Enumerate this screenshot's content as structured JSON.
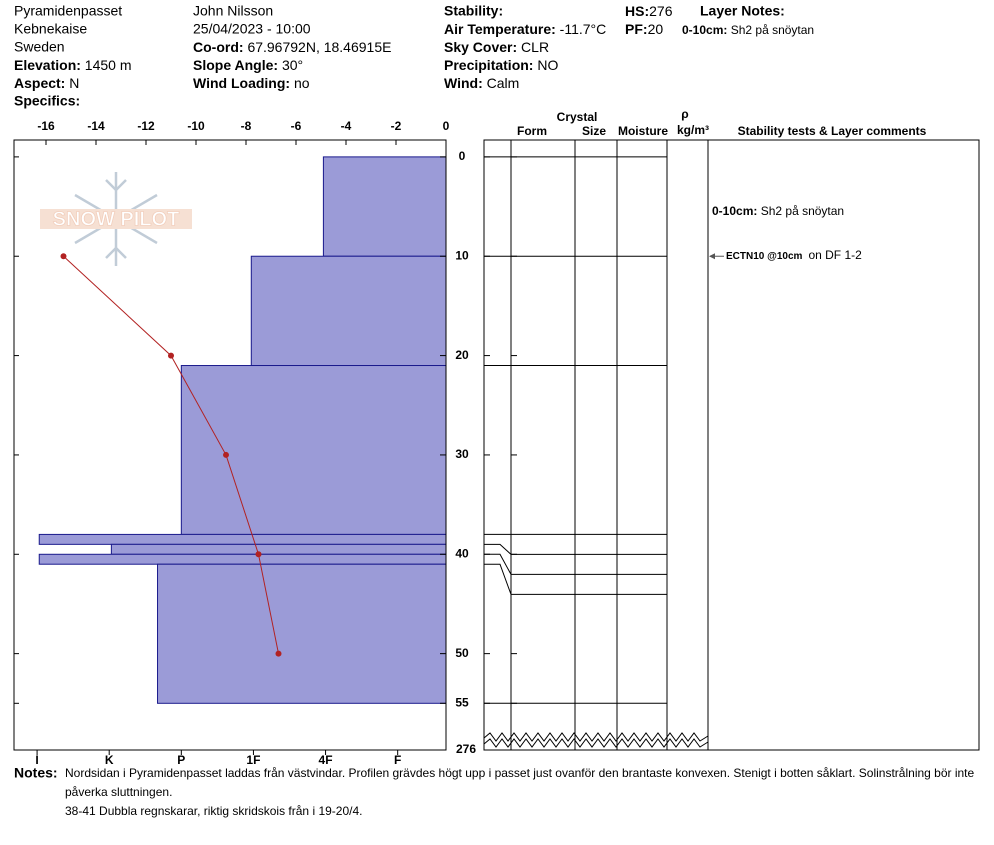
{
  "header": {
    "location": "Pyramidenpasset",
    "range": "Kebnekaise",
    "country": "Sweden",
    "elevation": {
      "label": "Elevation:",
      "value": "1450 m"
    },
    "aspect": {
      "label": "Aspect:",
      "value": "N"
    },
    "specifics": {
      "label": "Specifics:"
    },
    "observer": "John Nilsson",
    "datetime": "25/04/2023 - 10:00",
    "coord": {
      "label": "Co-ord:",
      "value": "67.96792N, 18.46915E"
    },
    "slope": {
      "label": "Slope Angle:",
      "value": "30°"
    },
    "wind_loading": {
      "label": "Wind Loading:",
      "value": "no"
    },
    "stability": {
      "label": "Stability:"
    },
    "air_temp": {
      "label": "Air Temperature:",
      "value": "-11.7°C"
    },
    "sky": {
      "label": "Sky Cover:",
      "value": "CLR"
    },
    "precip": {
      "label": "Precipitation:",
      "value": "NO"
    },
    "wind": {
      "label": "Wind:",
      "value": "Calm"
    },
    "hs": {
      "label": "HS:",
      "value": "276"
    },
    "pf": {
      "label": "PF:",
      "value": "20"
    },
    "layer_notes": {
      "label": "Layer Notes:",
      "items": [
        {
          "range": "0-10cm:",
          "text": "Sh2 på snöytan"
        }
      ]
    }
  },
  "logo": {
    "text": "SNOW PILOT"
  },
  "chart_data": {
    "type": "snow-profile",
    "xlim": [
      -17.28,
      0
    ],
    "xticks": [
      -16,
      -14,
      -12,
      -10,
      -8,
      -6,
      -4,
      -2,
      0
    ],
    "ylim": [
      -1.7,
      59.7
    ],
    "yticks": [
      0,
      10,
      20,
      30,
      40,
      50,
      55
    ],
    "bottom_depth": 276,
    "hardness_lim": [
      0.33,
      6.32
    ],
    "hardness_ticks": [
      {
        "value": 6,
        "label": "I"
      },
      {
        "value": 5,
        "label": "K"
      },
      {
        "value": 4,
        "label": "P"
      },
      {
        "value": 3,
        "label": "1F"
      },
      {
        "value": 2,
        "label": "4F"
      },
      {
        "value": 1,
        "label": "F"
      }
    ],
    "layers": {
      "color": "#9b9bd7",
      "top": [
        0,
        10,
        21,
        38,
        39,
        40,
        41
      ],
      "bottom": [
        10,
        21,
        38,
        39,
        40,
        41,
        55
      ],
      "hardness": [
        2.03,
        3.03,
        4,
        5.97,
        4.97,
        5.97,
        4.33
      ]
    },
    "temperature": {
      "color": "#b22222",
      "depth": [
        10,
        20,
        30,
        40,
        50
      ],
      "values": [
        -15.3,
        -11.0,
        -8.8,
        -7.5,
        -6.7
      ]
    },
    "columns": {
      "crystal": "Crystal",
      "form": "Form",
      "size": "Size",
      "moisture": "Moisture",
      "rho": "ρ",
      "density": "kg/m³",
      "comments": "Stability tests & Layer comments"
    },
    "tests": [
      {
        "depth": 10,
        "code": "ECTN10 @10cm",
        "text": "on DF 1-2"
      }
    ]
  },
  "notes": {
    "label": "Notes:",
    "lines": [
      "Nordsidan i Pyramidenpasset laddas från västvindar. Profilen grävdes högt upp i passet just ovanför den brantaste konvexen. Stenigt i botten såklart. Solinstrålning bör inte",
      "påverka sluttningen.",
      "38-41 Dubbla regnskarar, riktig skridskois från i 19-20/4."
    ]
  }
}
